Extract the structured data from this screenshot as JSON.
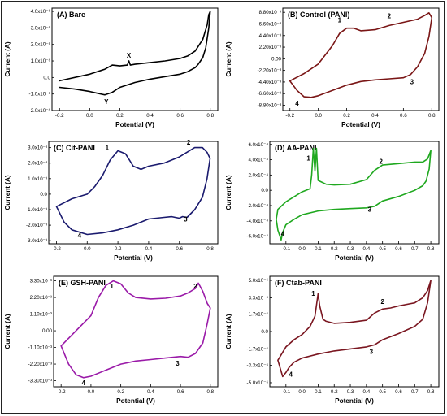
{
  "chart_data": [
    {
      "type": "line",
      "title": "(A) Bare",
      "xlabel": "Potential (V)",
      "ylabel": "Current (A)",
      "xlim": [
        -0.25,
        0.85
      ],
      "ylim": [
        -2e-06,
        4.2e-06
      ],
      "xticks": [
        -0.2,
        0.0,
        0.2,
        0.4,
        0.6,
        0.8
      ],
      "xtick_labels": [
        "-0.2",
        "0.0",
        "0.2",
        "0.4",
        "0.6",
        "0.8"
      ],
      "yticks": [
        4e-06,
        3e-06,
        2e-06,
        1e-06,
        0,
        -1e-06,
        -2e-06
      ],
      "ytick_labels": [
        "4.0x10⁻⁶",
        "3.0x10⁻⁶",
        "2.0x10⁻⁶",
        "1.0x10⁻⁶",
        "0.0",
        "-1.0x10⁻⁶",
        "-2.0x10⁻⁶"
      ],
      "color": "#000000",
      "annotations": [
        {
          "text": "X",
          "x": 0.26,
          "y": 1.2e-06
        },
        {
          "text": "Y",
          "x": 0.11,
          "y": -1.6e-06
        }
      ],
      "series": [
        {
          "x": [
            -0.2,
            0.0,
            0.1,
            0.15,
            0.2,
            0.25,
            0.26,
            0.27,
            0.3,
            0.4,
            0.5,
            0.6,
            0.65,
            0.7,
            0.75,
            0.78,
            0.79,
            0.8,
            0.79,
            0.77,
            0.75,
            0.72,
            0.7,
            0.65,
            0.6,
            0.5,
            0.4,
            0.3,
            0.2,
            0.15,
            0.1,
            0.05,
            0.0,
            -0.1,
            -0.2
          ],
          "y": [
            -2e-07,
            2e-07,
            5e-07,
            7.5e-07,
            7e-07,
            7.5e-07,
            1e-06,
            7.5e-07,
            8e-07,
            9e-07,
            1e-06,
            1.15e-06,
            1.3e-06,
            1.6e-06,
            2.3e-06,
            3.2e-06,
            3.8e-06,
            4e-06,
            3e-06,
            1.8e-06,
            1.2e-06,
            8e-07,
            6e-07,
            3.5e-07,
            2e-07,
            5e-08,
            -1e-07,
            -3e-07,
            -6e-07,
            -9e-07,
            -1.05e-06,
            -9.5e-07,
            -8.5e-07,
            -7e-07,
            -6e-07
          ]
        }
      ]
    },
    {
      "type": "line",
      "title": "(B) Control (PANI)",
      "xlabel": "Potential (V)",
      "ylabel": "Current (A)",
      "xlim": [
        -0.25,
        0.85
      ],
      "ylim": [
        -0.0098,
        0.0096
      ],
      "xticks": [
        -0.2,
        0.0,
        0.2,
        0.4,
        0.6,
        0.8
      ],
      "xtick_labels": [
        "-0.2",
        "0.0",
        "0.2",
        "0.4",
        "0.6",
        "0.8"
      ],
      "yticks": [
        0.0088,
        0.0066,
        0.0044,
        0.0022,
        0,
        -0.0022,
        -0.0044,
        -0.0066,
        -0.0088
      ],
      "ytick_labels": [
        "8.80x10⁻³",
        "6.60x10⁻³",
        "4.40x10⁻³",
        "2.20x10⁻³",
        "0.00",
        "-2.20x10⁻³",
        "-4.40x10⁻³",
        "-6.60x10⁻³",
        "-8.80x10⁻³"
      ],
      "color": "#7a1616",
      "annotations": [
        {
          "text": "1",
          "x": 0.15,
          "y": 0.0069
        },
        {
          "text": "2",
          "x": 0.5,
          "y": 0.0077
        },
        {
          "text": "3",
          "x": 0.66,
          "y": -0.0048
        },
        {
          "text": "4",
          "x": -0.15,
          "y": -0.0089
        }
      ],
      "series": [
        {
          "x": [
            -0.2,
            -0.1,
            0.0,
            0.1,
            0.15,
            0.2,
            0.25,
            0.3,
            0.4,
            0.5,
            0.6,
            0.7,
            0.75,
            0.78,
            0.8,
            0.78,
            0.75,
            0.7,
            0.65,
            0.6,
            0.5,
            0.4,
            0.3,
            0.2,
            0.1,
            0.0,
            -0.05,
            -0.1,
            -0.15,
            -0.2
          ],
          "y": [
            -0.0042,
            -0.0028,
            -0.001,
            0.0025,
            0.0048,
            0.0058,
            0.0058,
            0.0053,
            0.0055,
            0.0063,
            0.0069,
            0.0075,
            0.0082,
            0.0087,
            0.0078,
            0.0042,
            0.001,
            -0.0015,
            -0.003,
            -0.0036,
            -0.0038,
            -0.004,
            -0.0043,
            -0.005,
            -0.006,
            -0.007,
            -0.0073,
            -0.0072,
            -0.006,
            -0.0042
          ]
        }
      ]
    },
    {
      "type": "line",
      "title": "(C) Cit-PANI",
      "xlabel": "Potential (V)",
      "ylabel": "Current (A)",
      "xlim": [
        -0.25,
        0.85
      ],
      "ylim": [
        -0.0032,
        0.0034
      ],
      "xticks": [
        -0.2,
        0.0,
        0.2,
        0.4,
        0.6,
        0.8
      ],
      "xtick_labels": [
        "-0.2",
        "0.0",
        "0.2",
        "0.4",
        "0.6",
        "0.8"
      ],
      "yticks": [
        0.003,
        0.002,
        0.001,
        0,
        -0.001,
        -0.002,
        -0.003
      ],
      "ytick_labels": [
        "3.0x10⁻³",
        "2.0x10⁻³",
        "1.0x10⁻³",
        "0.0",
        "-1.0x10⁻³",
        "-2.0x10⁻³",
        "-3.0x10⁻³"
      ],
      "color": "#1a1a6e",
      "annotations": [
        {
          "text": "1",
          "x": 0.13,
          "y": 0.00285
        },
        {
          "text": "2",
          "x": 0.66,
          "y": 0.0032
        },
        {
          "text": "3",
          "x": 0.64,
          "y": -0.00175
        },
        {
          "text": "4",
          "x": -0.05,
          "y": -0.0028
        }
      ],
      "series": [
        {
          "x": [
            0.0,
            0.05,
            0.1,
            0.15,
            0.2,
            0.25,
            0.3,
            0.35,
            0.4,
            0.5,
            0.6,
            0.7,
            0.75,
            0.78,
            0.8,
            0.78,
            0.75,
            0.7,
            0.65,
            0.62,
            0.6,
            0.55,
            0.5,
            0.4,
            0.3,
            0.2,
            0.1,
            0.0,
            -0.1,
            -0.15,
            -0.2,
            -0.1,
            0.0
          ],
          "y": [
            0.0,
            0.0005,
            0.0012,
            0.0022,
            0.0028,
            0.0026,
            0.0018,
            0.0016,
            0.0018,
            0.002,
            0.0024,
            0.003,
            0.003,
            0.0027,
            0.0023,
            0.001,
            -0.0002,
            -0.001,
            -0.0015,
            -0.00145,
            -0.00155,
            -0.00145,
            -0.0015,
            -0.0016,
            -0.002,
            -0.0023,
            -0.0025,
            -0.0026,
            -0.0023,
            -0.0018,
            -0.0008,
            -0.0003,
            0.0
          ]
        }
      ]
    },
    {
      "type": "line",
      "title": "(D) AA-PANI",
      "xlabel": "Potential (V)",
      "ylabel": "Current (A)",
      "xlim": [
        -0.2,
        0.85
      ],
      "ylim": [
        -0.0007,
        0.00064
      ],
      "xticks": [
        -0.1,
        0.0,
        0.1,
        0.2,
        0.3,
        0.4,
        0.5,
        0.6,
        0.7,
        0.8
      ],
      "xtick_labels": [
        "-0.1",
        "0.0",
        "0.1",
        "0.2",
        "0.3",
        "0.4",
        "0.5",
        "0.6",
        "0.7",
        "0.8"
      ],
      "yticks": [
        0.0006,
        0.0004,
        0.0002,
        0,
        -0.0002,
        -0.0004,
        -0.0006
      ],
      "ytick_labels": [
        "6.0x10⁻⁴",
        "4.0x10⁻⁴",
        "2.0x10⁻⁴",
        "0.0",
        "-2.0x10⁻⁴",
        "-4.0x10⁻⁴",
        "-6.0x10⁻⁴"
      ],
      "color": "#1fa81f",
      "annotations": [
        {
          "text": "1",
          "x": 0.04,
          "y": 0.00039
        },
        {
          "text": "2",
          "x": 0.49,
          "y": 0.00035
        },
        {
          "text": "3",
          "x": 0.42,
          "y": -0.00028
        },
        {
          "text": "4",
          "x": -0.12,
          "y": -0.0006
        }
      ],
      "series": [
        {
          "x": [
            -0.15,
            -0.1,
            0.0,
            0.05,
            0.06,
            0.07,
            0.08,
            0.09,
            0.1,
            0.15,
            0.2,
            0.3,
            0.4,
            0.45,
            0.5,
            0.6,
            0.7,
            0.75,
            0.78,
            0.8,
            0.79,
            0.77,
            0.75,
            0.7,
            0.6,
            0.5,
            0.45,
            0.4,
            0.3,
            0.2,
            0.1,
            0.0,
            -0.05,
            -0.1,
            -0.12,
            -0.13,
            -0.15,
            -0.16,
            -0.15
          ],
          "y": [
            -0.00025,
            -0.00015,
            -2e-05,
            2e-05,
            0.0002,
            0.00055,
            0.00025,
            0.00055,
            0.00013,
            8e-05,
            7e-05,
            8e-05,
            0.00014,
            0.00026,
            0.00033,
            0.00035,
            0.00037,
            0.00037,
            0.00041,
            0.00052,
            0.00028,
            0.00012,
            6e-05,
            0.0,
            -8e-05,
            -0.00014,
            -0.00021,
            -0.00023,
            -0.00024,
            -0.00025,
            -0.00027,
            -0.00032,
            -0.00038,
            -0.00045,
            -0.00055,
            -0.00065,
            -0.00052,
            -0.00038,
            -0.00025
          ]
        }
      ]
    },
    {
      "type": "line",
      "title": "(E) GSH-PANI",
      "xlabel": "Potential (V)",
      "ylabel": "Current (A)",
      "xlim": [
        -0.25,
        0.85
      ],
      "ylim": [
        -0.0037,
        0.0036
      ],
      "xticks": [
        -0.2,
        0.0,
        0.2,
        0.4,
        0.6,
        0.8
      ],
      "xtick_labels": [
        "-0.2",
        "0.0",
        "0.2",
        "0.4",
        "0.6",
        "0.8"
      ],
      "yticks": [
        0.0033,
        0.0022,
        0.0011,
        0,
        -0.0011,
        -0.0022,
        -0.0033
      ],
      "ytick_labels": [
        "3.30x10⁻³",
        "2.20x10⁻³",
        "1.10x10⁻³",
        "0.00",
        "-1.10x10⁻³",
        "-2.20x10⁻³",
        "-3.30x10⁻³"
      ],
      "color": "#9a1aa8",
      "annotations": [
        {
          "text": "1",
          "x": 0.14,
          "y": 0.0028
        },
        {
          "text": "2",
          "x": 0.7,
          "y": 0.0028
        },
        {
          "text": "3",
          "x": 0.58,
          "y": -0.0023
        },
        {
          "text": "4",
          "x": -0.05,
          "y": -0.0036
        }
      ],
      "series": [
        {
          "x": [
            -0.2,
            -0.1,
            0.0,
            0.05,
            0.1,
            0.15,
            0.2,
            0.25,
            0.3,
            0.4,
            0.5,
            0.6,
            0.65,
            0.7,
            0.72,
            0.75,
            0.78,
            0.8,
            0.78,
            0.75,
            0.7,
            0.65,
            0.6,
            0.5,
            0.4,
            0.3,
            0.2,
            0.1,
            0.0,
            -0.05,
            -0.1,
            -0.15,
            -0.2
          ],
          "y": [
            -0.001,
            0.0,
            0.001,
            0.0022,
            0.003,
            0.0033,
            0.0031,
            0.0025,
            0.0022,
            0.0021,
            0.00215,
            0.0023,
            0.0025,
            0.0028,
            0.00315,
            0.0026,
            0.0018,
            0.0015,
            0.0005,
            -0.0008,
            -0.0015,
            -0.00175,
            -0.0017,
            -0.0018,
            -0.0019,
            -0.002,
            -0.0022,
            -0.0026,
            -0.003,
            -0.0031,
            -0.0029,
            -0.0022,
            -0.001
          ]
        }
      ]
    },
    {
      "type": "line",
      "title": "(F) Ctab-PANI",
      "xlabel": "Potential (V)",
      "ylabel": "Current (A)",
      "xlim": [
        -0.2,
        0.85
      ],
      "ylim": [
        -5.4e-06,
        5.4e-06
      ],
      "xticks": [
        -0.1,
        0.0,
        0.1,
        0.2,
        0.3,
        0.4,
        0.5,
        0.6,
        0.7,
        0.8
      ],
      "xtick_labels": [
        "-0.1",
        "0.0",
        "0.1",
        "0.2",
        "0.3",
        "0.4",
        "0.5",
        "0.6",
        "0.7",
        "0.8"
      ],
      "yticks": [
        5e-06,
        3.3e-06,
        1.7e-06,
        0,
        -1.7e-06,
        -3.3e-06,
        -5e-06
      ],
      "ytick_labels": [
        "5.0x10⁻⁶",
        "3.3x10⁻⁶",
        "1.7x10⁻⁶",
        "0.0",
        "-1.7x10⁻⁶",
        "-3.3x10⁻⁶",
        "-5.0x10⁻⁶"
      ],
      "color": "#7a1620",
      "annotations": [
        {
          "text": "1",
          "x": 0.07,
          "y": 3.5e-06
        },
        {
          "text": "2",
          "x": 0.5,
          "y": 2.7e-06
        },
        {
          "text": "3",
          "x": 0.43,
          "y": -2.2e-06
        },
        {
          "text": "4",
          "x": -0.07,
          "y": -4.4e-06
        }
      ],
      "series": [
        {
          "x": [
            -0.15,
            -0.1,
            -0.05,
            0.0,
            0.05,
            0.08,
            0.1,
            0.11,
            0.13,
            0.15,
            0.2,
            0.3,
            0.4,
            0.45,
            0.5,
            0.55,
            0.6,
            0.7,
            0.75,
            0.78,
            0.8,
            0.78,
            0.75,
            0.7,
            0.6,
            0.5,
            0.45,
            0.4,
            0.3,
            0.2,
            0.1,
            0.0,
            -0.05,
            -0.08,
            -0.1,
            -0.12,
            -0.15
          ],
          "y": [
            -2.8e-06,
            -1.5e-06,
            -8e-07,
            -3e-07,
            5e-07,
            1.5e-06,
            3.7e-06,
            2.5e-06,
            1.2e-06,
            1e-06,
            8e-07,
            9e-07,
            1.1e-06,
            1.8e-06,
            2.2e-06,
            2.3e-06,
            2.5e-06,
            2.8e-06,
            3.3e-06,
            4e-06,
            5e-06,
            2.8e-06,
            1.2e-06,
            5e-07,
            -2e-07,
            -8e-07,
            -1.3e-06,
            -1.5e-06,
            -1.7e-06,
            -1.9e-06,
            -2.2e-06,
            -2.6e-06,
            -3e-06,
            -3.5e-06,
            -4e-06,
            -4.4e-06,
            -2.8e-06
          ]
        }
      ]
    }
  ]
}
